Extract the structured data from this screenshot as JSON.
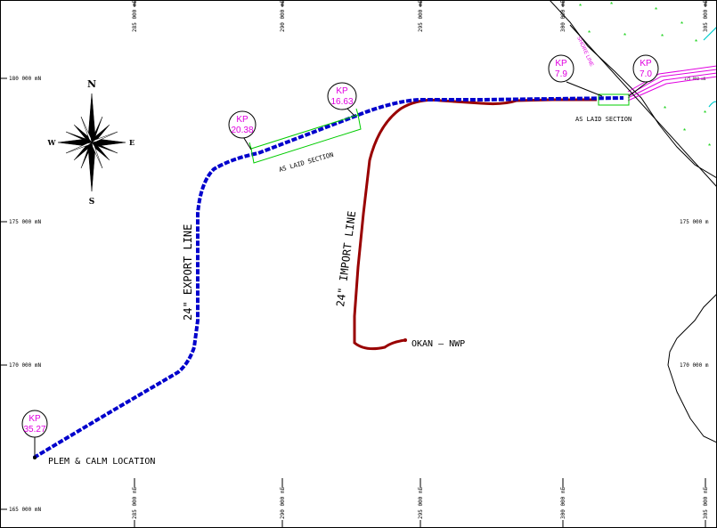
{
  "grid": {
    "easting_labels": [
      "285 000 mE",
      "290 000 mE",
      "295 000 mE",
      "300 000 mE",
      "305 000 mE"
    ],
    "northing_labels": [
      "180 000 mN",
      "175 000 mN",
      "170 000 mN",
      "165 000 mN"
    ],
    "right_northing_labels": [
      "175 000 m",
      "170 000 m"
    ],
    "top_right_label": "175 000 mN"
  },
  "compass": {
    "north": "N",
    "south": "S",
    "east": "E",
    "west": "W"
  },
  "pipelines": {
    "export": {
      "label": "24\" EXPORT LINE",
      "color": "#0000cc"
    },
    "import": {
      "label": "24\" IMPORT LINE",
      "color": "#990000"
    }
  },
  "kp_markers": [
    {
      "kp": "KP",
      "value": "35.27"
    },
    {
      "kp": "KP",
      "value": "20.38"
    },
    {
      "kp": "KP",
      "value": "16.63"
    },
    {
      "kp": "KP",
      "value": "7.9"
    },
    {
      "kp": "KP",
      "value": "7.0"
    }
  ],
  "labels": {
    "plem": "PLEM & CALM LOCATION",
    "okan": "OKAN – NWP",
    "as_laid_1": "AS LAID SECTION",
    "as_laid_2": "AS LAID SECTION",
    "shore_line": "SHORE LINE"
  },
  "colors": {
    "kp": "#e000e0",
    "as_laid": "#00cc00",
    "shore_dots": "#00cc00",
    "cyan": "#00cccc"
  }
}
